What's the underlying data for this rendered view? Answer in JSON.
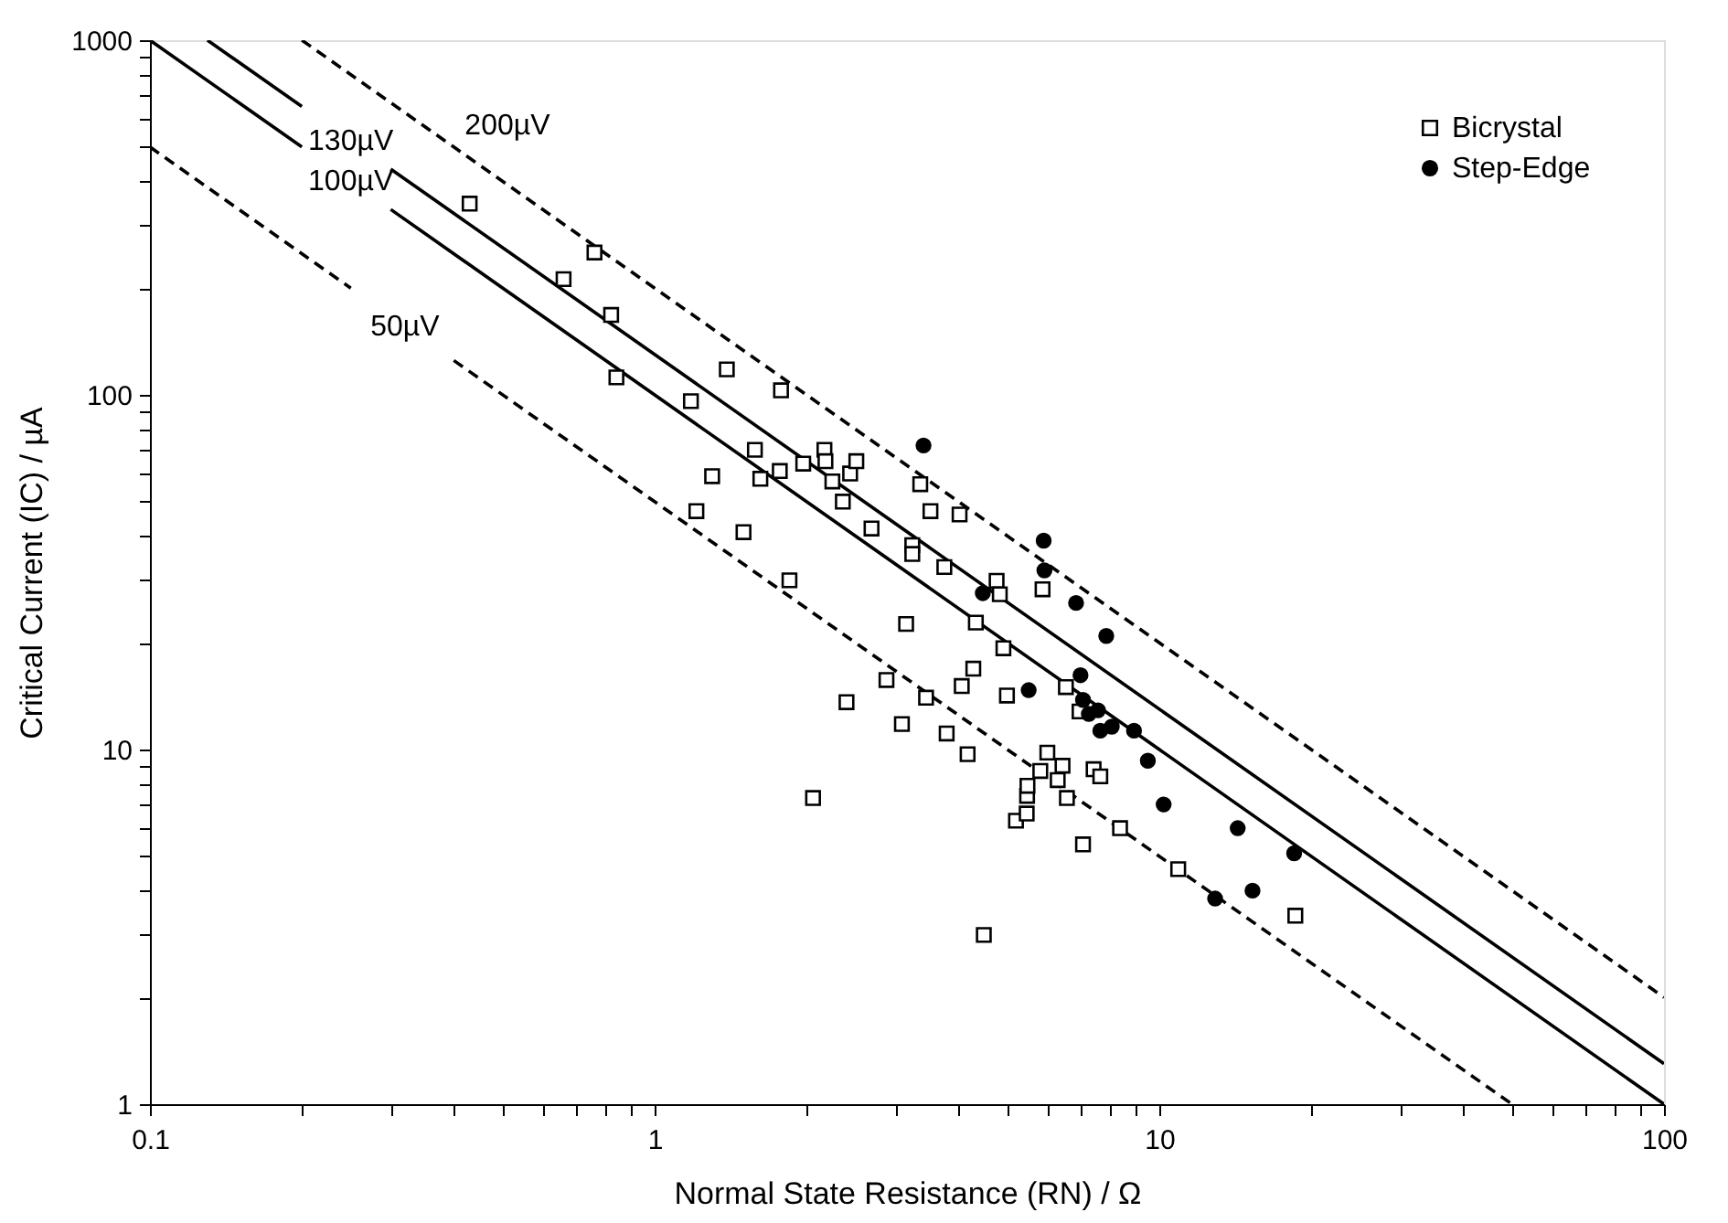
{
  "chart_data": {
    "type": "scatter",
    "xlabel": "Normal State Resistance (RN) / Ω",
    "ylabel": "Critical Current (IC) / µA",
    "log": "xy",
    "grid": false,
    "legend": "top right",
    "xlim": [
      0.1,
      100
    ],
    "ylim": [
      1,
      1000
    ],
    "xticks": [
      0.1,
      {
        "value": 0.2,
        "label": null
      },
      {
        "value": 0.3,
        "label": null
      },
      {
        "value": 0.4,
        "label": null
      },
      {
        "value": 0.5,
        "label": null
      },
      {
        "value": 0.6,
        "label": null
      },
      {
        "value": 0.7,
        "label": null
      },
      {
        "value": 0.8,
        "label": null
      },
      {
        "value": 0.9,
        "label": null
      },
      1,
      {
        "value": 2,
        "label": null
      },
      {
        "value": 3,
        "label": null
      },
      {
        "value": 4,
        "label": null
      },
      {
        "value": 5,
        "label": null
      },
      {
        "value": 6,
        "label": null
      },
      {
        "value": 7,
        "label": null
      },
      {
        "value": 8,
        "label": null
      },
      {
        "value": 9,
        "label": null
      },
      10,
      {
        "value": 20,
        "label": null
      },
      {
        "value": 30,
        "label": null
      },
      {
        "value": 40,
        "label": null
      },
      {
        "value": 50,
        "label": null
      },
      {
        "value": 60,
        "label": null
      },
      {
        "value": 70,
        "label": null
      },
      {
        "value": 80,
        "label": null
      },
      {
        "value": 90,
        "label": null
      },
      100
    ],
    "yticks": [
      1,
      {
        "value": 2,
        "label": null
      },
      {
        "value": 3,
        "label": null
      },
      {
        "value": 4,
        "label": null
      },
      {
        "value": 5,
        "label": null
      },
      {
        "value": 6,
        "label": null
      },
      {
        "value": 7,
        "label": null
      },
      {
        "value": 8,
        "label": null
      },
      {
        "value": 9,
        "label": null
      },
      10,
      {
        "value": 20,
        "label": null
      },
      {
        "value": 30,
        "label": null
      },
      {
        "value": 40,
        "label": null
      },
      {
        "value": 50,
        "label": null
      },
      {
        "value": 60,
        "label": null
      },
      {
        "value": 70,
        "label": null
      },
      {
        "value": 80,
        "label": null
      },
      {
        "value": 90,
        "label": null
      },
      100,
      {
        "value": 200,
        "label": null
      },
      {
        "value": 300,
        "label": null
      },
      {
        "value": 400,
        "label": null
      },
      {
        "value": 500,
        "label": null
      },
      {
        "value": 600,
        "label": null
      },
      {
        "value": 700,
        "label": null
      },
      {
        "value": 800,
        "label": null
      },
      {
        "value": 900,
        "label": null
      },
      1000
    ],
    "series": [
      {
        "name": "Bicrystal",
        "marker": "square",
        "color": "#000000",
        "x": [
          0.43,
          0.66,
          0.76,
          0.82,
          0.84,
          1.18,
          1.3,
          1.39,
          1.21,
          1.5,
          1.58,
          1.62,
          1.78,
          1.77,
          1.85,
          1.97,
          2.17,
          2.18,
          2.25,
          2.36,
          2.44,
          2.51,
          2.69,
          2.4,
          2.88,
          3.09,
          3.15,
          3.24,
          3.24,
          3.36,
          3.45,
          3.52,
          3.75,
          3.79,
          4.02,
          4.06,
          4.17,
          4.33,
          4.28,
          4.76,
          4.83,
          4.91,
          4.99,
          4.49,
          5.2,
          5.46,
          5.47,
          5.48,
          5.81,
          5.87,
          6.0,
          6.29,
          6.43,
          6.53,
          6.56,
          7.06,
          7.41,
          7.64,
          8.36,
          10.9,
          18.6,
          2.06,
          6.95
        ],
        "values": [
          346,
          212,
          252,
          168,
          112,
          96,
          59,
          118,
          47,
          41,
          70,
          58,
          103,
          61,
          30,
          64,
          70,
          65,
          57,
          50,
          60,
          65,
          42,
          13.6,
          15.7,
          11.8,
          22.6,
          37.7,
          35.6,
          56,
          14.0,
          47,
          32.7,
          11.1,
          46,
          15.1,
          9.7,
          22.8,
          16.9,
          29.9,
          27.4,
          19.3,
          14.2,
          3.0,
          6.3,
          6.6,
          7.4,
          7.9,
          8.7,
          28.3,
          9.8,
          8.2,
          9.0,
          15.0,
          7.3,
          5.4,
          8.8,
          8.4,
          6.0,
          4.6,
          3.4,
          7.3,
          12.8
        ]
      },
      {
        "name": "Step-Edge",
        "marker": "circle",
        "color": "#000000",
        "x": [
          3.41,
          5.9,
          5.92,
          6.84,
          7.85,
          6.98,
          5.51,
          4.47,
          7.06,
          7.25,
          7.56,
          7.64,
          8.05,
          8.91,
          9.49,
          10.2,
          14.3,
          12.9,
          15.3,
          18.5
        ],
        "values": [
          72,
          38.8,
          32.0,
          25.9,
          20.9,
          16.2,
          14.7,
          27.6,
          13.8,
          12.6,
          12.9,
          11.3,
          11.6,
          11.3,
          9.3,
          7.0,
          6.0,
          3.8,
          4.0,
          5.1
        ]
      },
      {
        "name": "200µV",
        "type": "line",
        "line_style": "dashed",
        "color": "#000000",
        "x": [
          0.2,
          0.4,
          100
        ],
        "values": [
          1000,
          500,
          2
        ]
      },
      {
        "name": "130µV",
        "type": "line",
        "line_style": "solid",
        "color": "#000000",
        "x": [
          0.13,
          0.2,
          0.25,
          0.3,
          100
        ],
        "values": [
          1000,
          650,
          null,
          433.33,
          1.3
        ]
      },
      {
        "name": "100µV",
        "type": "line",
        "line_style": "solid",
        "color": "#000000",
        "x": [
          0.1,
          0.2,
          0.25,
          0.3,
          100
        ],
        "values": [
          1000,
          500,
          null,
          333.33,
          1
        ]
      },
      {
        "name": "50µV",
        "type": "line",
        "line_style": "dashed",
        "color": "#000000",
        "x": [
          0.1,
          0.25,
          0.32,
          0.4,
          50
        ],
        "values": [
          500,
          200,
          null,
          125,
          1
        ]
      }
    ]
  }
}
